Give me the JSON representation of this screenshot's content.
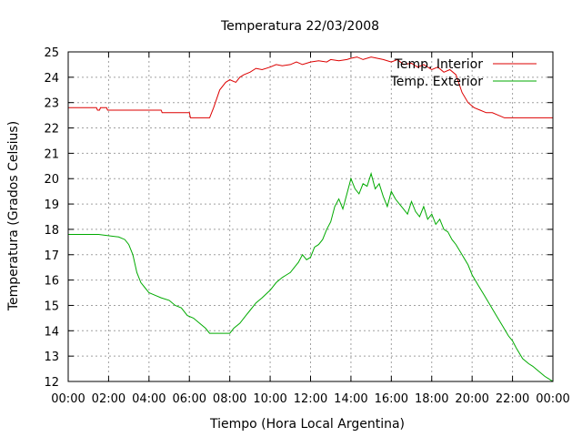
{
  "chart_data": {
    "type": "line",
    "title": "Temperatura 22/03/2008",
    "xlabel": "Tiempo (Hora Local Argentina)",
    "ylabel": "Temperatura (Grados Celsius)",
    "xlim": [
      0,
      24
    ],
    "ylim": [
      12,
      25
    ],
    "x_ticks": [
      {
        "value": 0,
        "label": "00:00"
      },
      {
        "value": 2,
        "label": "02:00"
      },
      {
        "value": 4,
        "label": "04:00"
      },
      {
        "value": 6,
        "label": "06:00"
      },
      {
        "value": 8,
        "label": "08:00"
      },
      {
        "value": 10,
        "label": "10:00"
      },
      {
        "value": 12,
        "label": "12:00"
      },
      {
        "value": 14,
        "label": "14:00"
      },
      {
        "value": 16,
        "label": "16:00"
      },
      {
        "value": 18,
        "label": "18:00"
      },
      {
        "value": 20,
        "label": "20:00"
      },
      {
        "value": 22,
        "label": "22:00"
      },
      {
        "value": 24,
        "label": "00:00"
      }
    ],
    "y_ticks": [
      12,
      13,
      14,
      15,
      16,
      17,
      18,
      19,
      20,
      21,
      22,
      23,
      24,
      25
    ],
    "grid": true,
    "legend_position": "top-right",
    "series": [
      {
        "name": "Temp. Interior",
        "color": "#dd0000",
        "x": [
          0,
          1.4,
          1.45,
          1.55,
          1.6,
          1.9,
          1.95,
          2.05,
          2.1,
          3.5,
          4.6,
          4.65,
          6.0,
          6.05,
          7.0,
          7.2,
          7.5,
          7.8,
          8.0,
          8.3,
          8.5,
          8.7,
          9.0,
          9.3,
          9.6,
          10.0,
          10.3,
          10.6,
          11.0,
          11.3,
          11.6,
          12.0,
          12.4,
          12.8,
          13.0,
          13.4,
          13.8,
          14.0,
          14.3,
          14.6,
          15.0,
          15.3,
          15.6,
          16.0,
          16.3,
          16.6,
          17.0,
          17.3,
          17.6,
          18.0,
          18.3,
          18.6,
          18.9,
          19.2,
          19.5,
          19.8,
          20.1,
          20.4,
          20.7,
          21.0,
          21.3,
          21.6,
          22.0,
          23.0,
          24.0
        ],
        "values": [
          22.8,
          22.8,
          22.7,
          22.7,
          22.8,
          22.8,
          22.7,
          22.7,
          22.7,
          22.7,
          22.7,
          22.6,
          22.6,
          22.4,
          22.4,
          22.8,
          23.5,
          23.8,
          23.9,
          23.8,
          24.0,
          24.1,
          24.2,
          24.35,
          24.3,
          24.4,
          24.5,
          24.45,
          24.5,
          24.6,
          24.5,
          24.6,
          24.65,
          24.6,
          24.7,
          24.65,
          24.7,
          24.75,
          24.8,
          24.7,
          24.8,
          24.75,
          24.7,
          24.6,
          24.7,
          24.5,
          24.55,
          24.4,
          24.5,
          24.3,
          24.4,
          24.2,
          24.3,
          24.1,
          23.4,
          23.0,
          22.8,
          22.7,
          22.6,
          22.6,
          22.5,
          22.4,
          22.4,
          22.4,
          22.4
        ]
      },
      {
        "name": "Temp. Exterior",
        "color": "#00aa00",
        "x": [
          0,
          1.5,
          2.5,
          2.8,
          3.0,
          3.2,
          3.4,
          3.6,
          3.8,
          4.0,
          4.3,
          4.6,
          5.0,
          5.3,
          5.6,
          5.9,
          6.2,
          6.5,
          6.8,
          7.0,
          7.5,
          8.0,
          8.2,
          8.5,
          8.8,
          9.0,
          9.3,
          9.6,
          10.0,
          10.3,
          10.6,
          10.8,
          11.0,
          11.2,
          11.4,
          11.6,
          11.8,
          12.0,
          12.2,
          12.4,
          12.6,
          12.8,
          13.0,
          13.2,
          13.4,
          13.6,
          13.8,
          14.0,
          14.2,
          14.4,
          14.6,
          14.8,
          15.0,
          15.2,
          15.4,
          15.6,
          15.8,
          16.0,
          16.2,
          16.4,
          16.6,
          16.8,
          17.0,
          17.2,
          17.4,
          17.6,
          17.8,
          18.0,
          18.2,
          18.4,
          18.6,
          18.8,
          19.0,
          19.2,
          19.5,
          19.8,
          20.0,
          20.3,
          20.6,
          20.9,
          21.2,
          21.5,
          21.8,
          22.0,
          22.2,
          22.5,
          22.8,
          23.0,
          23.3,
          23.6,
          23.8,
          24.0
        ],
        "values": [
          17.8,
          17.8,
          17.7,
          17.6,
          17.4,
          17.0,
          16.3,
          15.9,
          15.7,
          15.5,
          15.4,
          15.3,
          15.2,
          15.0,
          14.9,
          14.6,
          14.5,
          14.3,
          14.1,
          13.9,
          13.9,
          13.9,
          14.1,
          14.3,
          14.6,
          14.8,
          15.1,
          15.3,
          15.6,
          15.9,
          16.1,
          16.2,
          16.3,
          16.5,
          16.7,
          17.0,
          16.8,
          16.9,
          17.3,
          17.4,
          17.6,
          18.0,
          18.3,
          18.9,
          19.2,
          18.8,
          19.4,
          20.0,
          19.6,
          19.4,
          19.8,
          19.7,
          20.2,
          19.6,
          19.8,
          19.3,
          18.9,
          19.5,
          19.2,
          19.0,
          18.8,
          18.6,
          19.1,
          18.7,
          18.5,
          18.9,
          18.4,
          18.6,
          18.2,
          18.4,
          18.0,
          17.9,
          17.6,
          17.4,
          17.0,
          16.6,
          16.2,
          15.8,
          15.4,
          15.0,
          14.6,
          14.2,
          13.8,
          13.6,
          13.3,
          12.9,
          12.7,
          12.6,
          12.4,
          12.2,
          12.1,
          12.0
        ]
      }
    ]
  }
}
